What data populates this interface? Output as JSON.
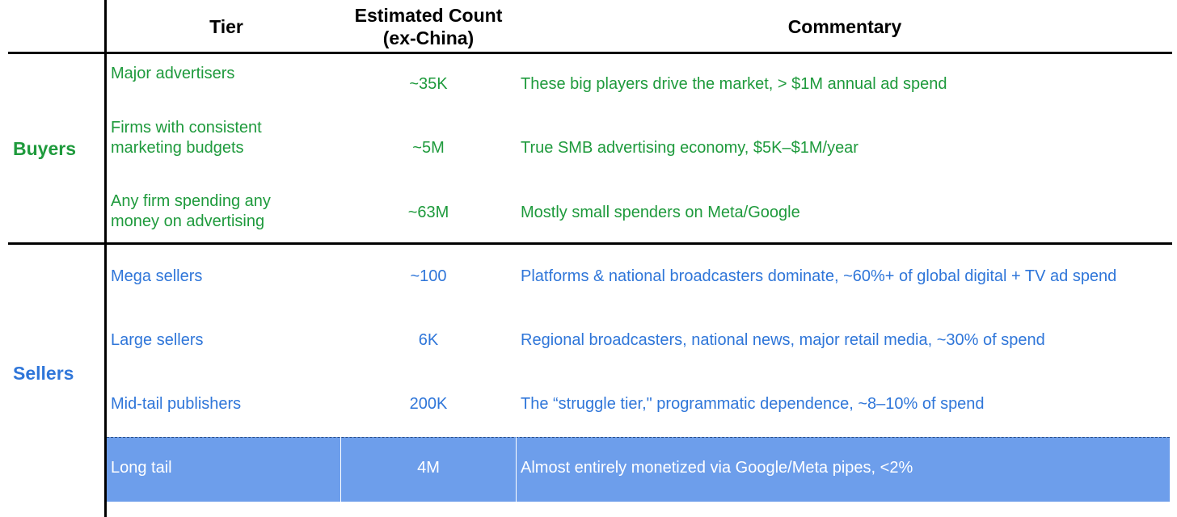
{
  "header": {
    "tier": "Tier",
    "count_line1": "Estimated Count",
    "count_line2": "(ex-China)",
    "commentary": "Commentary"
  },
  "groups": {
    "buyers": "Buyers",
    "sellers": "Sellers"
  },
  "buyers": [
    {
      "tier_line1": "Major advertisers",
      "tier_line2": "",
      "count": "~35K",
      "commentary": "These big players drive the market, > $1M annual ad spend"
    },
    {
      "tier_line1": "Firms with consistent",
      "tier_line2": "marketing budgets",
      "count": "~5M",
      "commentary": "True SMB advertising economy, $5K–$1M/year"
    },
    {
      "tier_line1": "Any firm spending any",
      "tier_line2": "money on advertising",
      "count": "~63M",
      "commentary": "Mostly small spenders on Meta/Google"
    }
  ],
  "sellers": [
    {
      "tier": "Mega sellers",
      "count": "~100",
      "commentary": "Platforms & national broadcasters dominate, ~60%+ of global digital + TV ad spend"
    },
    {
      "tier": "Large sellers",
      "count": "6K",
      "commentary": "Regional broadcasters, national news, major retail media, ~30% of spend"
    },
    {
      "tier": "Mid-tail publishers",
      "count": "200K",
      "commentary": "The “struggle tier,\" programmatic dependence, ~8–10% of spend"
    },
    {
      "tier": "Long tail",
      "count": "4M",
      "commentary": "Almost entirely monetized via Google/Meta pipes, <2%"
    }
  ],
  "colors": {
    "buyers": "#1e9a3c",
    "sellers": "#2f76d9",
    "highlight_row": "#6d9eeb"
  }
}
